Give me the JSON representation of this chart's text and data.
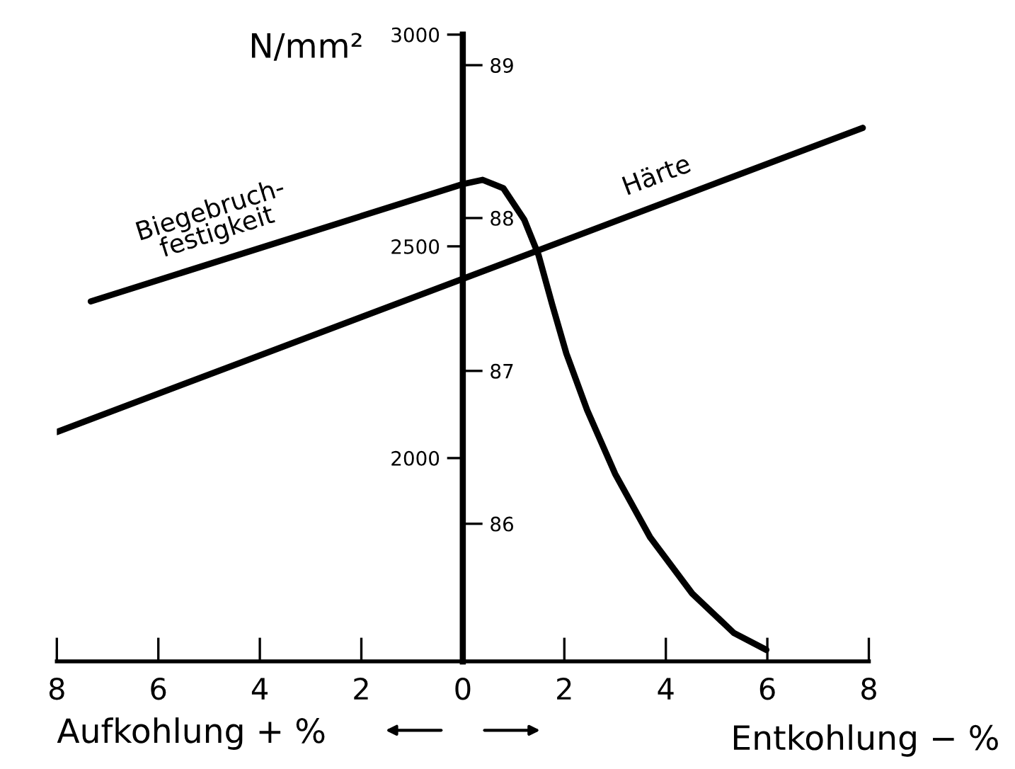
{
  "chart_data": {
    "type": "line",
    "ylabel": "N/mm²",
    "xlabel": "Aufkohlung + %",
    "annotations": [
      "Entkohlung − %"
    ],
    "xlim": [
      -8,
      8
    ],
    "xticks": [
      {
        "value": -8,
        "label": "8"
      },
      {
        "value": -6,
        "label": "6"
      },
      {
        "value": -4,
        "label": "4"
      },
      {
        "value": -2,
        "label": "2"
      },
      0,
      2,
      4,
      6,
      8
    ],
    "ylim": [
      1520,
      3000
    ],
    "yticks": [
      2000,
      2500,
      3000
    ],
    "y2lim": [
      85.1,
      89.2
    ],
    "y2ticks": [
      86,
      87,
      88,
      89
    ],
    "grid": false,
    "legend": false,
    "marker": "none",
    "line_style": "solid",
    "series": [
      {
        "name": "Biegebruch-\nfestigkeit",
        "color": "#000000",
        "x": [
          -7.33,
          0,
          0.39,
          0.8,
          1.21,
          1.49,
          1.76,
          2.04,
          2.45,
          3.0,
          3.69,
          4.52,
          5.34,
          5.98
        ],
        "values": [
          2370,
          2647,
          2657,
          2637,
          2563,
          2480,
          2363,
          2247,
          2113,
          1963,
          1813,
          1680,
          1587,
          1547
        ]
      },
      {
        "name": "Härte",
        "color": "#000000",
        "axis": "y2",
        "x": [
          -8.0,
          7.88
        ],
        "values": [
          86.6,
          88.59
        ]
      }
    ]
  }
}
